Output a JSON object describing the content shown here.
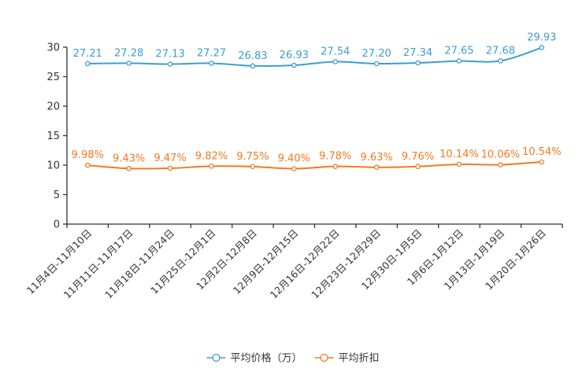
{
  "chart_data": {
    "type": "line",
    "categories": [
      "11月4日-11月10日",
      "11月11日-11月17日",
      "11月18日-11月24日",
      "11月25日-12月1日",
      "12月2日-12月8日",
      "12月9日-12月15日",
      "12月16日-12月22日",
      "12月23日-12月29日",
      "12月30日-1月5日",
      "1月6日-1月12日",
      "1月13日-1月19日",
      "1月20日-1月26日"
    ],
    "ylim": [
      0,
      30
    ],
    "yticks": [
      "0",
      "5",
      "10",
      "15",
      "20",
      "25",
      "30"
    ],
    "series": [
      {
        "name": "平均价格（万）",
        "color": "#3c9ed0",
        "values": [
          27.21,
          27.28,
          27.13,
          27.27,
          26.83,
          26.93,
          27.54,
          27.2,
          27.34,
          27.65,
          27.68,
          29.93
        ],
        "labels": [
          "27.21",
          "27.28",
          "27.13",
          "27.27",
          "26.83",
          "26.93",
          "27.54",
          "27.20",
          "27.34",
          "27.65",
          "27.68",
          "29.93"
        ]
      },
      {
        "name": "平均折扣",
        "color": "#f47920",
        "values": [
          9.98,
          9.43,
          9.47,
          9.82,
          9.75,
          9.4,
          9.78,
          9.63,
          9.76,
          10.14,
          10.06,
          10.54
        ],
        "labels": [
          "9.98%",
          "9.43%",
          "9.47%",
          "9.82%",
          "9.75%",
          "9.40%",
          "9.78%",
          "9.63%",
          "9.76%",
          "10.14%",
          "10.06%",
          "10.54%"
        ]
      }
    ],
    "legend_position": "bottom-center",
    "grid": false
  }
}
